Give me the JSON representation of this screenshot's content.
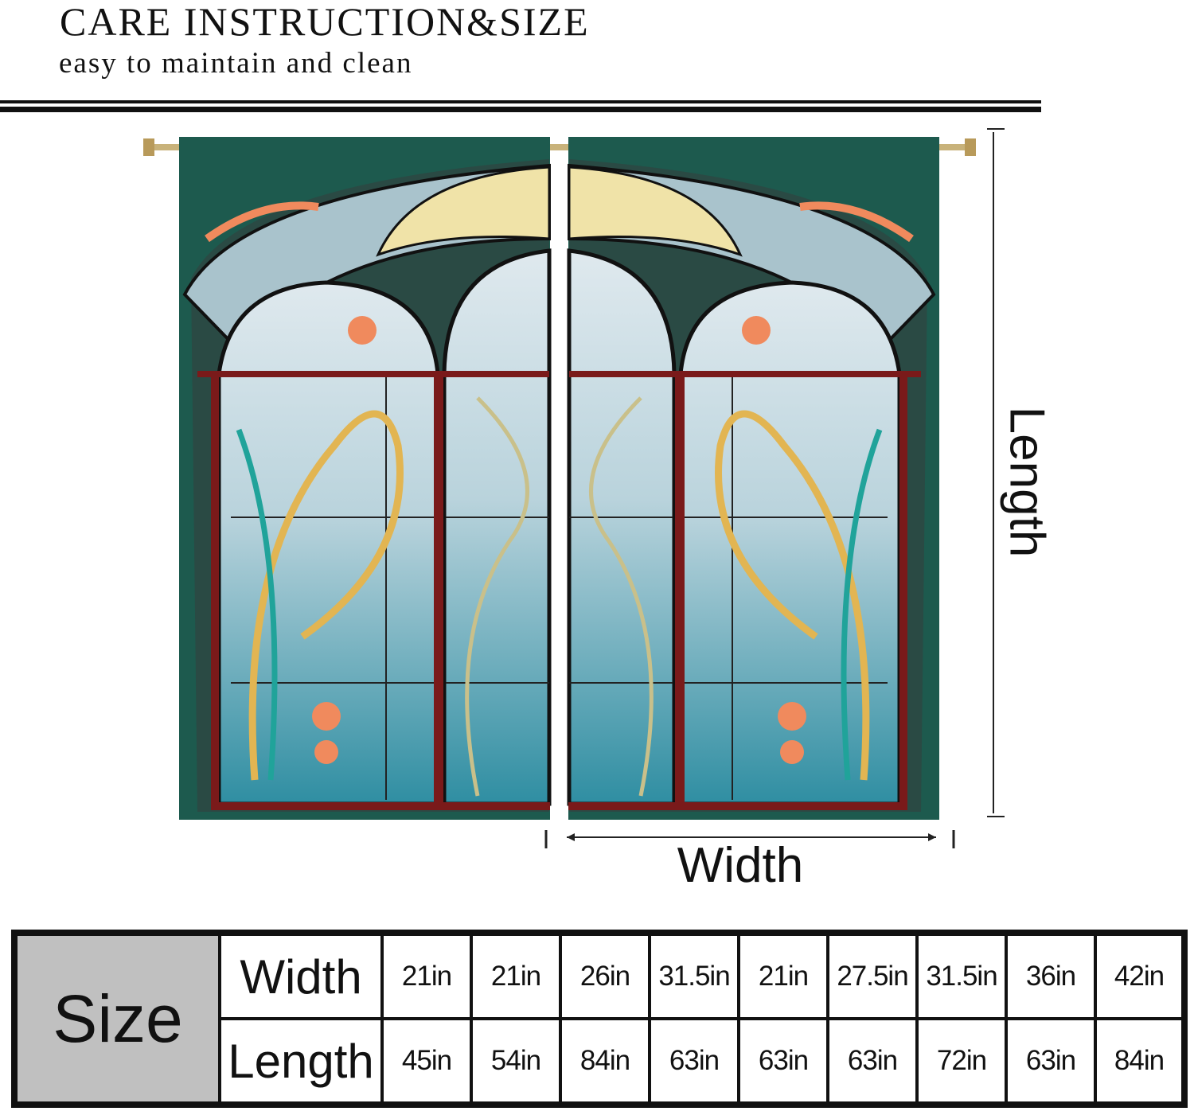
{
  "header": {
    "title": "CARE INSTRUCTION&SIZE",
    "subtitle": "easy to maintain and clean"
  },
  "diagram": {
    "length_label": "Length",
    "width_label": "Width",
    "colors": {
      "curtain_border": "#1d5a4e",
      "frame": "#7a1a1a",
      "glass": "#5fb3c0",
      "gold": "#e2b552",
      "flower": "#f08a5d"
    }
  },
  "size_table": {
    "label": "Size",
    "row_headers": [
      "Width",
      "Length"
    ],
    "widths": [
      "21in",
      "21in",
      "26in",
      "31.5in",
      "21in",
      "27.5in",
      "31.5in",
      "36in",
      "42in"
    ],
    "lengths": [
      "45in",
      "54in",
      "84in",
      "63in",
      "63in",
      "63in",
      "72in",
      "63in",
      "84in"
    ]
  }
}
